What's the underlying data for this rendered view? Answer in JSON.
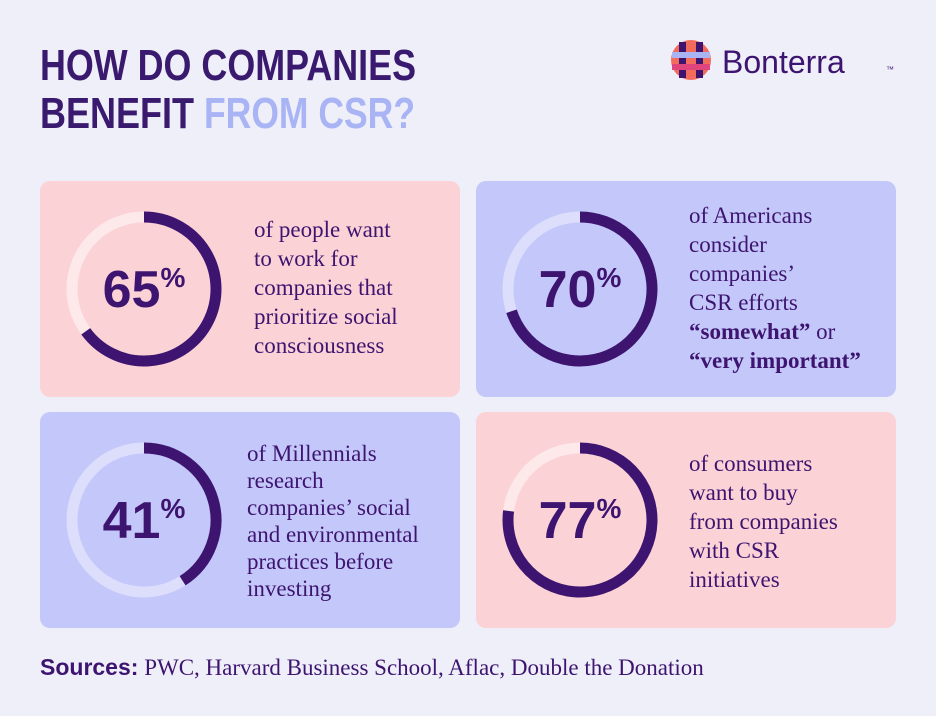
{
  "header": {
    "title_line1": "HOW DO COMPANIES",
    "title_line2_dark": "BENEFIT",
    "title_line2_light": "FROM CSR?",
    "brand": "Bonterra",
    "trademark": "™"
  },
  "cards": [
    {
      "value": 65,
      "suffix": "%",
      "background": "#fbd2d6",
      "track": "#fde8ea",
      "ring": "#3d1470",
      "lines": [
        [
          {
            "text": "of people want"
          }
        ],
        [
          {
            "text": "to work for"
          }
        ],
        [
          {
            "text": "companies that"
          }
        ],
        [
          {
            "text": "prioritize social"
          }
        ],
        [
          {
            "text": "consciousness"
          }
        ]
      ]
    },
    {
      "value": 70,
      "suffix": "%",
      "background": "#c4c7f9",
      "track": "#dcdefc",
      "ring": "#3d1470",
      "lines": [
        [
          {
            "text": "of Americans"
          }
        ],
        [
          {
            "text": "consider"
          }
        ],
        [
          {
            "text": "companies’"
          }
        ],
        [
          {
            "text": "CSR efforts"
          }
        ],
        [
          {
            "text": "“somewhat”",
            "bold": true
          },
          {
            "text": " or"
          }
        ],
        [
          {
            "text": "“very important”",
            "bold": true
          }
        ]
      ]
    },
    {
      "value": 41,
      "suffix": "%",
      "background": "#c4c7f9",
      "track": "#dcdefc",
      "ring": "#3d1470",
      "lines": [
        [
          {
            "text": "of Millennials"
          }
        ],
        [
          {
            "text": "research"
          }
        ],
        [
          {
            "text": "companies’ social"
          }
        ],
        [
          {
            "text": "and environmental"
          }
        ],
        [
          {
            "text": "practices before"
          }
        ],
        [
          {
            "text": "investing"
          }
        ]
      ]
    },
    {
      "value": 77,
      "suffix": "%",
      "background": "#fbd2d6",
      "track": "#fde8ea",
      "ring": "#3d1470",
      "lines": [
        [
          {
            "text": "of consumers"
          }
        ],
        [
          {
            "text": "want to buy"
          }
        ],
        [
          {
            "text": "from companies"
          }
        ],
        [
          {
            "text": "with CSR"
          }
        ],
        [
          {
            "text": "initiatives"
          }
        ]
      ]
    }
  ],
  "footer": {
    "label": "Sources:",
    "text": " PWC, Harvard Business School, Aflac, Double the Donation"
  }
}
